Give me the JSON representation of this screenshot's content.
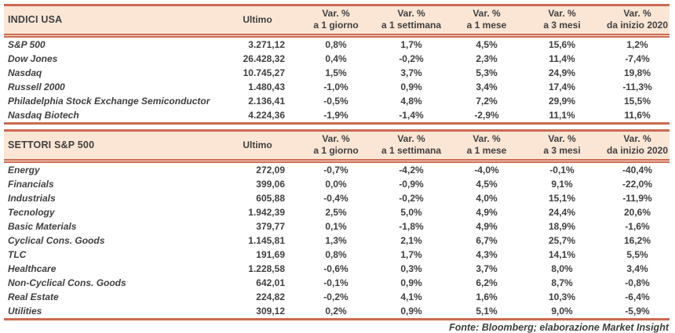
{
  "colors": {
    "border": "#cb6b53",
    "header_bg": "#fbe6d6",
    "text": "#3f3f3f"
  },
  "header_labels": {
    "ultimo": "Ultimo",
    "var_line1": "Var. %",
    "periods": [
      "a 1 giorno",
      "a 1 settimana",
      "a 1 mese",
      "a 3 mesi",
      "da inizio 2020"
    ]
  },
  "tables": [
    {
      "title": "INDICI USA",
      "rows": [
        {
          "label": "S&P 500",
          "ultimo": "3.271,12",
          "vars": [
            "0,8%",
            "1,7%",
            "4,5%",
            "15,6%",
            "1,2%"
          ]
        },
        {
          "label": "Dow Jones",
          "ultimo": "26.428,32",
          "vars": [
            "0,4%",
            "-0,2%",
            "2,3%",
            "11,4%",
            "-7,4%"
          ]
        },
        {
          "label": "Nasdaq",
          "ultimo": "10.745,27",
          "vars": [
            "1,5%",
            "3,7%",
            "5,3%",
            "24,9%",
            "19,8%"
          ]
        },
        {
          "label": "Russell 2000",
          "ultimo": "1.480,43",
          "vars": [
            "-1,0%",
            "0,9%",
            "3,4%",
            "17,4%",
            "-11,3%"
          ]
        },
        {
          "label": "Philadelphia Stock Exchange Semiconductor",
          "ultimo": "2.136,41",
          "vars": [
            "-0,5%",
            "4,8%",
            "7,2%",
            "29,9%",
            "15,5%"
          ]
        },
        {
          "label": "Nasdaq Biotech",
          "ultimo": "4.224,36",
          "vars": [
            "-1,9%",
            "-1,4%",
            "-2,9%",
            "11,1%",
            "11,6%"
          ]
        }
      ]
    },
    {
      "title": "SETTORI S&P 500",
      "rows": [
        {
          "label": "Energy",
          "ultimo": "272,09",
          "vars": [
            "-0,7%",
            "-4,2%",
            "-4,0%",
            "-0,1%",
            "-40,4%"
          ]
        },
        {
          "label": "Financials",
          "ultimo": "399,06",
          "vars": [
            "0,0%",
            "-0,9%",
            "4,5%",
            "9,1%",
            "-22,0%"
          ]
        },
        {
          "label": "Industrials",
          "ultimo": "605,88",
          "vars": [
            "-0,4%",
            "-0,2%",
            "4,0%",
            "15,1%",
            "-11,9%"
          ]
        },
        {
          "label": "Tecnology",
          "ultimo": "1.942,39",
          "vars": [
            "2,5%",
            "5,0%",
            "4,9%",
            "24,4%",
            "20,6%"
          ]
        },
        {
          "label": "Basic Materials",
          "ultimo": "379,77",
          "vars": [
            "0,1%",
            "-1,8%",
            "4,9%",
            "18,9%",
            "-1,6%"
          ]
        },
        {
          "label": "Cyclical Cons. Goods",
          "ultimo": "1.145,81",
          "vars": [
            "1,3%",
            "2,1%",
            "6,7%",
            "25,7%",
            "16,2%"
          ]
        },
        {
          "label": "TLC",
          "ultimo": "191,69",
          "vars": [
            "0,8%",
            "1,7%",
            "4,3%",
            "14,1%",
            "5,5%"
          ]
        },
        {
          "label": "Healthcare",
          "ultimo": "1.228,58",
          "vars": [
            "-0,6%",
            "0,3%",
            "3,7%",
            "8,0%",
            "3,4%"
          ]
        },
        {
          "label": "Non-Cyclical Cons. Goods",
          "ultimo": "642,01",
          "vars": [
            "-0,1%",
            "0,9%",
            "6,2%",
            "8,7%",
            "-0,8%"
          ]
        },
        {
          "label": "Real Estate",
          "ultimo": "224,82",
          "vars": [
            "-0,2%",
            "4,1%",
            "1,6%",
            "10,3%",
            "-6,4%"
          ]
        },
        {
          "label": "Utilities",
          "ultimo": "309,12",
          "vars": [
            "0,2%",
            "0,9%",
            "5,1%",
            "9,0%",
            "-5,9%"
          ]
        }
      ]
    }
  ],
  "footer": "Fonte: Bloomberg; elaborazione Market Insight"
}
